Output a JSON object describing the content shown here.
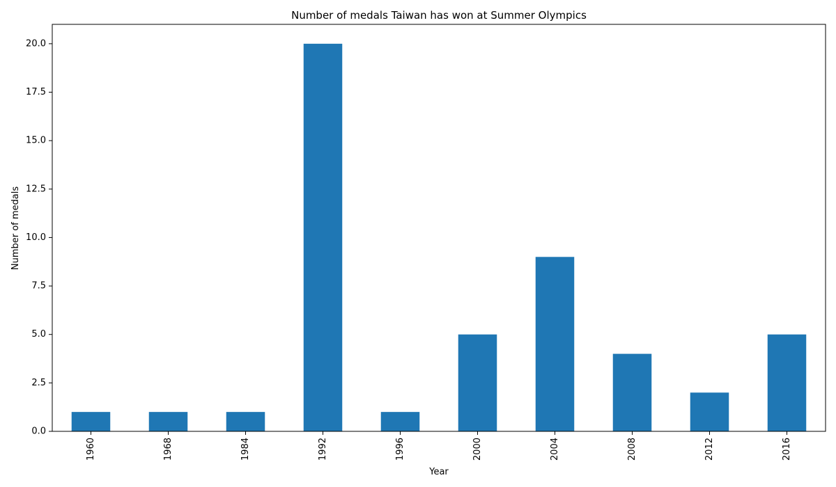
{
  "chart_data": {
    "type": "bar",
    "title": "Number of medals Taiwan has won at Summer Olympics",
    "xlabel": "Year",
    "ylabel": "Number of medals",
    "categories": [
      "1960",
      "1968",
      "1984",
      "1992",
      "1996",
      "2000",
      "2004",
      "2008",
      "2012",
      "2016"
    ],
    "values": [
      1,
      1,
      1,
      20,
      1,
      5,
      9,
      4,
      2,
      5
    ],
    "ylim": [
      0,
      21
    ],
    "yticks": [
      0.0,
      2.5,
      5.0,
      7.5,
      10.0,
      12.5,
      15.0,
      17.5,
      20.0
    ],
    "ytick_labels": [
      "0.0",
      "2.5",
      "5.0",
      "7.5",
      "10.0",
      "12.5",
      "15.0",
      "17.5",
      "20.0"
    ],
    "bar_color": "#1f77b4",
    "grid": false,
    "legend": false
  }
}
